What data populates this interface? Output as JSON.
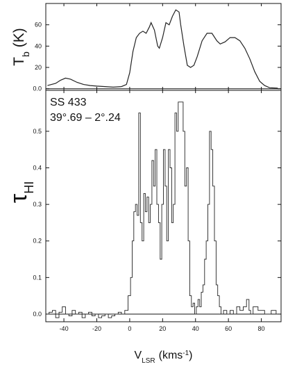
{
  "chart_data": [
    {
      "type": "line",
      "ylabel": [
        "T",
        "b",
        "(K)"
      ],
      "color": "#222222",
      "xlim": [
        -51,
        92
      ],
      "ylim": [
        -1.5,
        80
      ],
      "yticks": [
        {
          "value": 0,
          "label": "0.0"
        },
        20,
        40,
        60
      ],
      "x": [
        -50,
        -45,
        -42,
        -39,
        -36,
        -32,
        -28,
        -24,
        -20,
        -15,
        -10,
        -5,
        -2,
        0,
        2,
        4,
        6,
        8,
        10,
        12,
        13,
        15,
        17,
        18,
        20,
        22,
        24,
        26,
        28,
        30,
        31,
        33,
        35,
        37,
        39,
        41,
        44,
        47,
        50,
        53,
        55,
        58,
        61,
        64,
        67,
        70,
        73,
        76,
        79,
        82,
        85,
        90
      ],
      "values": [
        3,
        5,
        8,
        10,
        9,
        6,
        4,
        3,
        2.5,
        2,
        1.5,
        2,
        4,
        15,
        35,
        48,
        52,
        54,
        52,
        58,
        62,
        55,
        40,
        38,
        48,
        62,
        60,
        68,
        74,
        72,
        60,
        40,
        22,
        20,
        22,
        30,
        45,
        52,
        52,
        45,
        42,
        44,
        48,
        48,
        45,
        38,
        28,
        16,
        7,
        3,
        1,
        0.5
      ]
    },
    {
      "type": "step",
      "ylabel": [
        "τ",
        "HI"
      ],
      "xlabel": [
        "V",
        "LSR",
        "(kms",
        "-1",
        ")"
      ],
      "annotations": [
        "SS 433",
        "39°.69 – 2°.24"
      ],
      "color": "#222222",
      "xlim": [
        -51,
        92
      ],
      "ylim": [
        -0.021,
        0.612
      ],
      "xticks": [
        -40,
        -20,
        0,
        20,
        40,
        60,
        80
      ],
      "yticks": [
        {
          "value": 0,
          "label": "0.0"
        },
        {
          "value": 0.1,
          "label": "0.1"
        },
        {
          "value": 0.2,
          "label": "0.2"
        },
        {
          "value": 0.3,
          "label": "0.3"
        },
        {
          "value": 0.4,
          "label": "0.4"
        },
        {
          "value": 0.5,
          "label": "0.5"
        }
      ],
      "x": [
        -50,
        -48,
        -46,
        -44,
        -42,
        -40,
        -38,
        -36,
        -34,
        -32,
        -30,
        -28,
        -26,
        -24,
        -22,
        -20,
        -18,
        -16,
        -14,
        -12,
        -10,
        -8,
        -6,
        -4,
        -2,
        0,
        1,
        2,
        3,
        4,
        5,
        6,
        7,
        8,
        9,
        10,
        11,
        12,
        13,
        14,
        15,
        16,
        17,
        18,
        19,
        20,
        21,
        22,
        23,
        24,
        25,
        26,
        27,
        28,
        29,
        30,
        31,
        32,
        33,
        34,
        35,
        36,
        37,
        38,
        39,
        40,
        41,
        42,
        43,
        44,
        45,
        46,
        47,
        48,
        49,
        50,
        51,
        52,
        53,
        54,
        55,
        56,
        58,
        60,
        62,
        64,
        66,
        68,
        70,
        72,
        73,
        74,
        76,
        80,
        84,
        88,
        90
      ],
      "values": [
        0,
        0.005,
        0.01,
        -0.01,
        0.005,
        0.02,
        0,
        -0.005,
        0.01,
        0,
        0.005,
        -0.01,
        0,
        0.005,
        -0.005,
        0,
        -0.01,
        -0.005,
        0,
        -0.01,
        -0.005,
        0,
        0.005,
        0,
        0.01,
        0.05,
        0.1,
        0.2,
        0.28,
        0.3,
        0.27,
        0.55,
        0.25,
        0.2,
        0.33,
        0.28,
        0.32,
        0.25,
        0.3,
        0.42,
        0.35,
        0.45,
        0.3,
        0.25,
        0.15,
        0.3,
        0.45,
        0.35,
        0.2,
        0.45,
        0.4,
        0.25,
        0.3,
        0.55,
        0.5,
        0.58,
        0.58,
        0.58,
        0.5,
        0.35,
        0.4,
        0.2,
        0.05,
        0.02,
        0.03,
        0,
        0.02,
        0.04,
        0.02,
        0.06,
        0.08,
        0.15,
        0.2,
        0.3,
        0.5,
        0.45,
        0.35,
        0.2,
        0.08,
        0.05,
        0.02,
        0,
        0.01,
        0,
        0.01,
        0,
        0.02,
        0.01,
        0.02,
        0.04,
        0.01,
        0,
        0.02,
        0.01,
        0,
        0.01,
        0
      ]
    }
  ]
}
